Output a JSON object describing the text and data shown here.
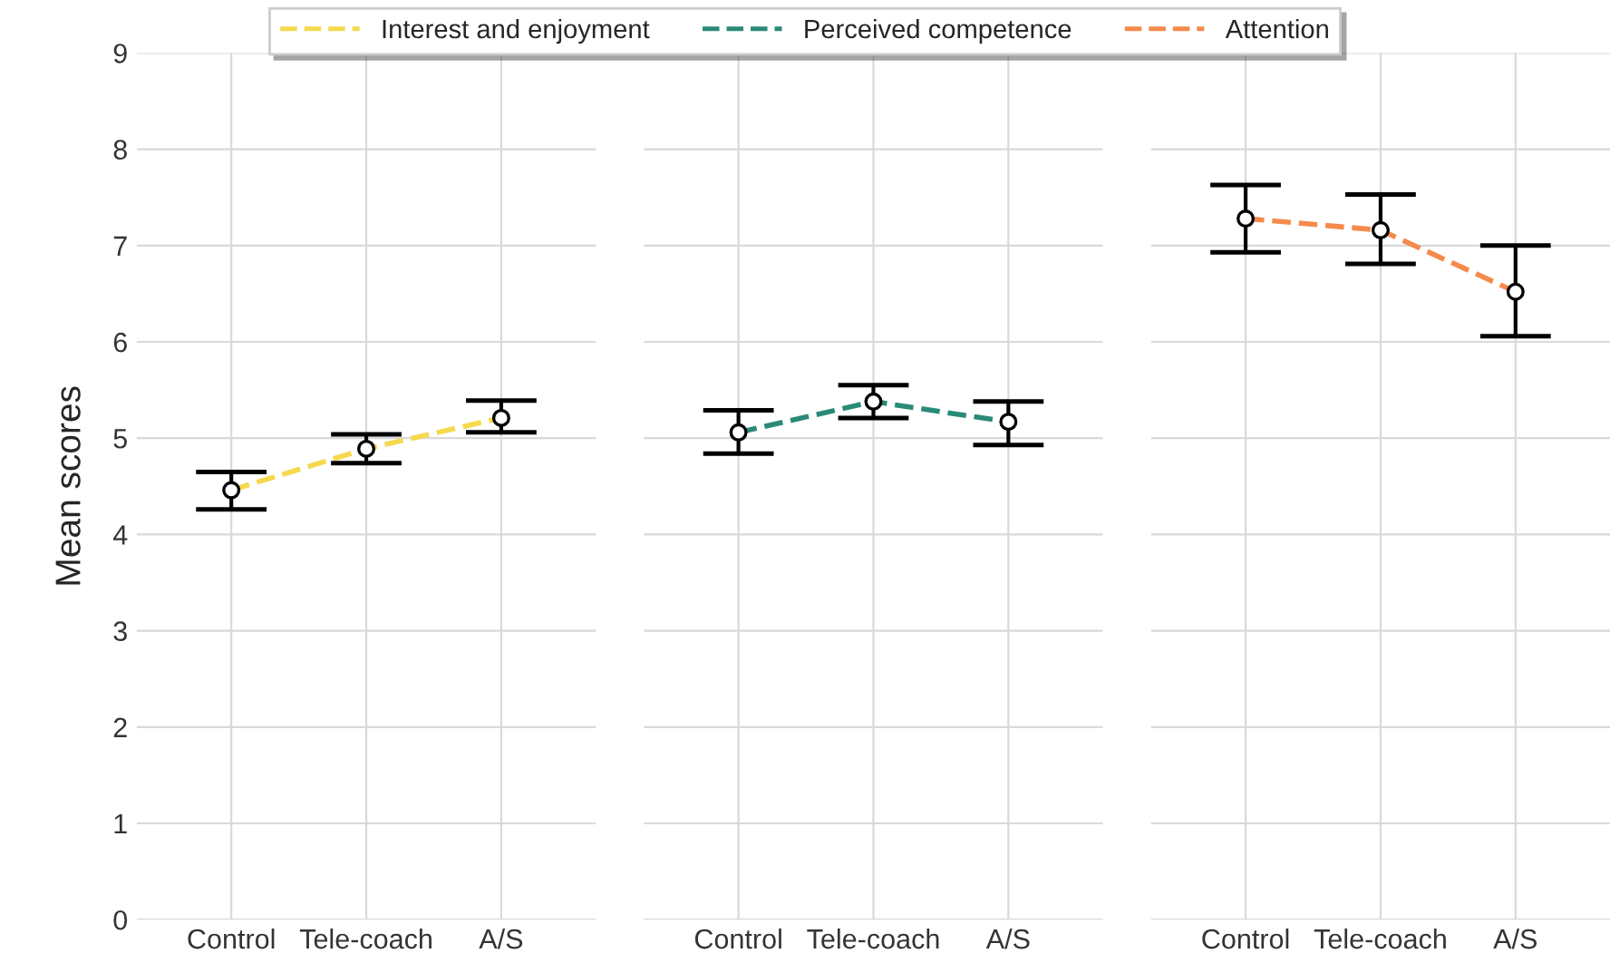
{
  "chart_data": [
    {
      "type": "line",
      "ylabel": "Mean scores",
      "categories": [
        "Control",
        "Tele-coach",
        "A/S"
      ],
      "ylim": [
        0,
        9
      ],
      "yticks": [
        0,
        1,
        2,
        3,
        4,
        5,
        6,
        7,
        8,
        9
      ],
      "grid": true,
      "legend": "top",
      "marker": "circle",
      "line_style": "dashed",
      "series": [
        {
          "name": "Interest and enjoyment",
          "color": "#f5d94e",
          "values": [
            4.46,
            4.89,
            5.21
          ],
          "errors": [
            [
              4.26,
              4.65
            ],
            [
              4.74,
              5.04
            ],
            [
              5.06,
              5.39
            ]
          ]
        }
      ]
    },
    {
      "type": "line",
      "categories": [
        "Control",
        "Tele-coach",
        "A/S"
      ],
      "ylim": [
        0,
        9
      ],
      "yticks": [
        0,
        1,
        2,
        3,
        4,
        5,
        6,
        7,
        8,
        9
      ],
      "tick_labels": "x",
      "grid": true,
      "legend": "top",
      "marker": "circle",
      "line_style": "dashed",
      "series": [
        {
          "name": "Perceived competence",
          "color": "#2a8a78",
          "values": [
            5.06,
            5.38,
            5.17
          ],
          "errors": [
            [
              4.84,
              5.29
            ],
            [
              5.21,
              5.55
            ],
            [
              4.93,
              5.38
            ]
          ]
        }
      ]
    },
    {
      "type": "line",
      "categories": [
        "Control",
        "Tele-coach",
        "A/S"
      ],
      "ylim": [
        0,
        9
      ],
      "yticks": [
        0,
        1,
        2,
        3,
        4,
        5,
        6,
        7,
        8,
        9
      ],
      "tick_labels": "x",
      "grid": true,
      "legend": "top",
      "marker": "circle",
      "line_style": "dashed",
      "series": [
        {
          "name": "Attention",
          "color": "#f58a4c",
          "values": [
            7.28,
            7.16,
            6.52
          ],
          "errors": [
            [
              6.93,
              7.63
            ],
            [
              6.81,
              7.53
            ],
            [
              6.06,
              7.0
            ]
          ]
        }
      ]
    }
  ]
}
